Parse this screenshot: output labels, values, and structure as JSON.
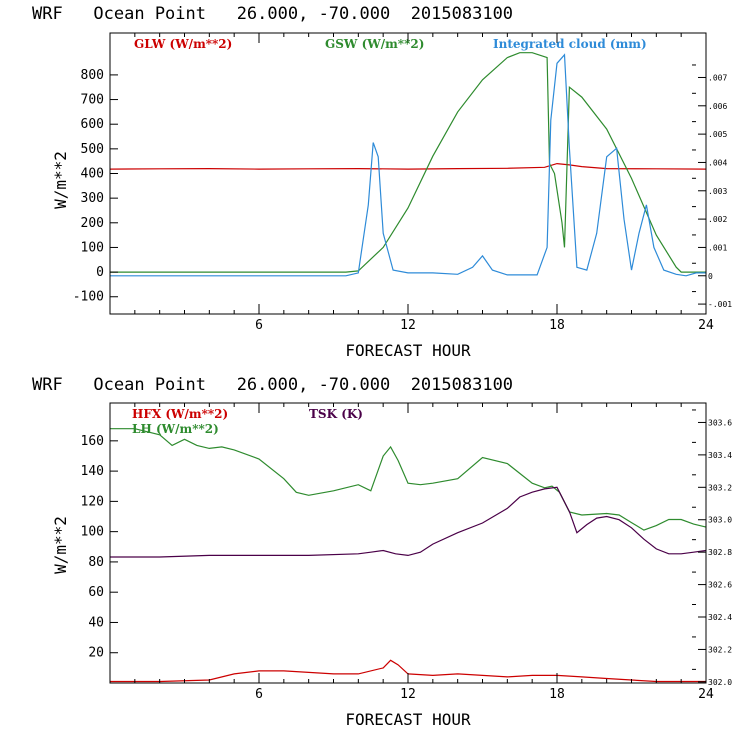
{
  "chart_data": [
    {
      "type": "line",
      "title": "WRF   Ocean Point   26.000, -70.000  2015083100",
      "xlabel": "FORECAST HOUR",
      "ylabel": "W/m**2",
      "xlim": [
        0,
        24
      ],
      "ylim": [
        -170,
        970
      ],
      "x_ticks": [
        6,
        12,
        18,
        24
      ],
      "y_ticks": [
        -100,
        0,
        100,
        200,
        300,
        400,
        500,
        600,
        700,
        800
      ],
      "right_ylim": [
        -0.00135,
        0.00857
      ],
      "right_ticks": [
        -0.001,
        0,
        0.001,
        0.002,
        0.003,
        0.004,
        0.005,
        0.006,
        0.007
      ],
      "right_tick_labels": [
        "-.001",
        "0",
        ".001",
        ".002",
        ".003",
        ".004",
        ".005",
        ".006",
        ".007"
      ],
      "series": [
        {
          "name": "GLW (W/m**2)",
          "color": "#cc0000",
          "axis": "left",
          "x": [
            0,
            2,
            4,
            6,
            8,
            10,
            12,
            14,
            16,
            17.5,
            18,
            18.5,
            19,
            20,
            22,
            24
          ],
          "y": [
            418,
            419,
            420,
            418,
            419,
            420,
            418,
            420,
            421,
            425,
            440,
            435,
            428,
            420,
            419,
            418
          ]
        },
        {
          "name": "GSW (W/m**2)",
          "color": "#2e8b2e",
          "axis": "left",
          "x": [
            0,
            9.5,
            10,
            11,
            12,
            13,
            14,
            15,
            16,
            16.5,
            17,
            17.6,
            17.7,
            17.9,
            18.2,
            18.3,
            18.5,
            19,
            20,
            21,
            22,
            22.8,
            23,
            24
          ],
          "y": [
            0,
            0,
            5,
            100,
            260,
            470,
            650,
            780,
            870,
            890,
            890,
            870,
            440,
            400,
            200,
            100,
            750,
            710,
            580,
            380,
            150,
            20,
            0,
            0
          ],
          "y_source_note": "GSW"
        },
        {
          "name": "Integrated cloud (mm)",
          "color": "#2e8bd8",
          "axis": "right",
          "x": [
            0,
            9.5,
            10,
            10.4,
            10.6,
            10.8,
            11.0,
            11.4,
            12,
            13,
            14,
            14.6,
            15,
            15.4,
            16,
            17.2,
            17.6,
            17.75,
            18,
            18.3,
            18.5,
            18.8,
            19.2,
            19.6,
            20,
            20.4,
            20.7,
            21,
            21.3,
            21.6,
            21.9,
            22.3,
            22.8,
            23.2,
            23.6,
            24
          ],
          "y": [
            0,
            0,
            0.0001,
            0.0025,
            0.0047,
            0.0042,
            0.0015,
            0.0002,
            0.0001,
            0.0001,
            5e-05,
            0.0003,
            0.0007,
            0.0002,
            3e-05,
            3e-05,
            0.001,
            0.0055,
            0.0075,
            0.0078,
            0.0045,
            0.0003,
            0.0002,
            0.0015,
            0.0042,
            0.0045,
            0.002,
            0.0002,
            0.0015,
            0.0025,
            0.001,
            0.0002,
            5e-05,
            0.0,
            0.0001,
            0.0001
          ]
        }
      ]
    },
    {
      "type": "line",
      "title": "WRF   Ocean Point   26.000, -70.000  2015083100",
      "xlabel": "FORECAST HOUR",
      "ylabel": "W/m**2",
      "xlim": [
        0,
        24
      ],
      "ylim": [
        0,
        185
      ],
      "x_ticks": [
        6,
        12,
        18,
        24
      ],
      "y_ticks": [
        20,
        40,
        60,
        80,
        100,
        120,
        140,
        160
      ],
      "right_ylim": [
        301.993,
        303.72
      ],
      "right_ticks": [
        302.0,
        302.2,
        302.4,
        302.6,
        302.8,
        303.0,
        303.2,
        303.4,
        303.6
      ],
      "right_tick_labels": [
        "302.0",
        "302.2",
        "302.4",
        "302.6",
        "302.8",
        "303.0",
        "303.2",
        "303.4",
        "303.6"
      ],
      "series": [
        {
          "name": "HFX (W/m**2)",
          "color": "#cc0000",
          "axis": "left",
          "x": [
            0,
            2,
            4,
            5,
            6,
            7,
            8,
            9,
            10,
            11,
            11.3,
            11.6,
            12,
            13,
            14,
            15,
            16,
            17,
            18,
            19,
            20,
            21,
            22,
            23,
            24
          ],
          "y": [
            1,
            1,
            2,
            6,
            8,
            8,
            7,
            6,
            6,
            10,
            15,
            12,
            6,
            5,
            6,
            5,
            4,
            5,
            5,
            4,
            3,
            2,
            1,
            1,
            1
          ]
        },
        {
          "name": "LH (W/m**2)",
          "color": "#2e8b2e",
          "axis": "left",
          "x": [
            0,
            1,
            2,
            2.5,
            3,
            3.5,
            4,
            4.5,
            5,
            6,
            7,
            7.5,
            8,
            9,
            10,
            10.5,
            11,
            11.3,
            11.6,
            12,
            12.5,
            13,
            14,
            15,
            16,
            17,
            17.5,
            17.8,
            18.1,
            18.5,
            19,
            20,
            20.5,
            21,
            21.5,
            22,
            22.5,
            23,
            23.5,
            24
          ],
          "y": [
            168,
            168,
            164,
            157,
            161,
            157,
            155,
            156,
            154,
            148,
            135,
            126,
            124,
            127,
            131,
            127,
            150,
            156,
            147,
            132,
            131,
            132,
            135,
            149,
            145,
            132,
            129,
            130,
            126,
            113,
            111,
            112,
            111,
            106,
            101,
            104,
            108,
            108,
            105,
            103
          ]
        },
        {
          "name": "TSK (K)",
          "color": "#4a0048",
          "axis": "right",
          "x": [
            0,
            2,
            4,
            6,
            8,
            10,
            10.5,
            11,
            11.5,
            12,
            12.5,
            13,
            14,
            15,
            16,
            16.5,
            17,
            17.5,
            18,
            18.5,
            18.8,
            19.2,
            19.6,
            20,
            20.5,
            21,
            21.5,
            22,
            22.5,
            23,
            23.5,
            24
          ],
          "y": [
            302.77,
            302.77,
            302.78,
            302.78,
            302.78,
            302.79,
            302.8,
            302.81,
            302.79,
            302.78,
            302.8,
            302.85,
            302.92,
            302.98,
            303.07,
            303.14,
            303.17,
            303.19,
            303.2,
            303.05,
            302.92,
            302.97,
            303.01,
            303.02,
            303.0,
            302.95,
            302.88,
            302.82,
            302.79,
            302.79,
            302.8,
            302.81
          ]
        }
      ]
    }
  ]
}
